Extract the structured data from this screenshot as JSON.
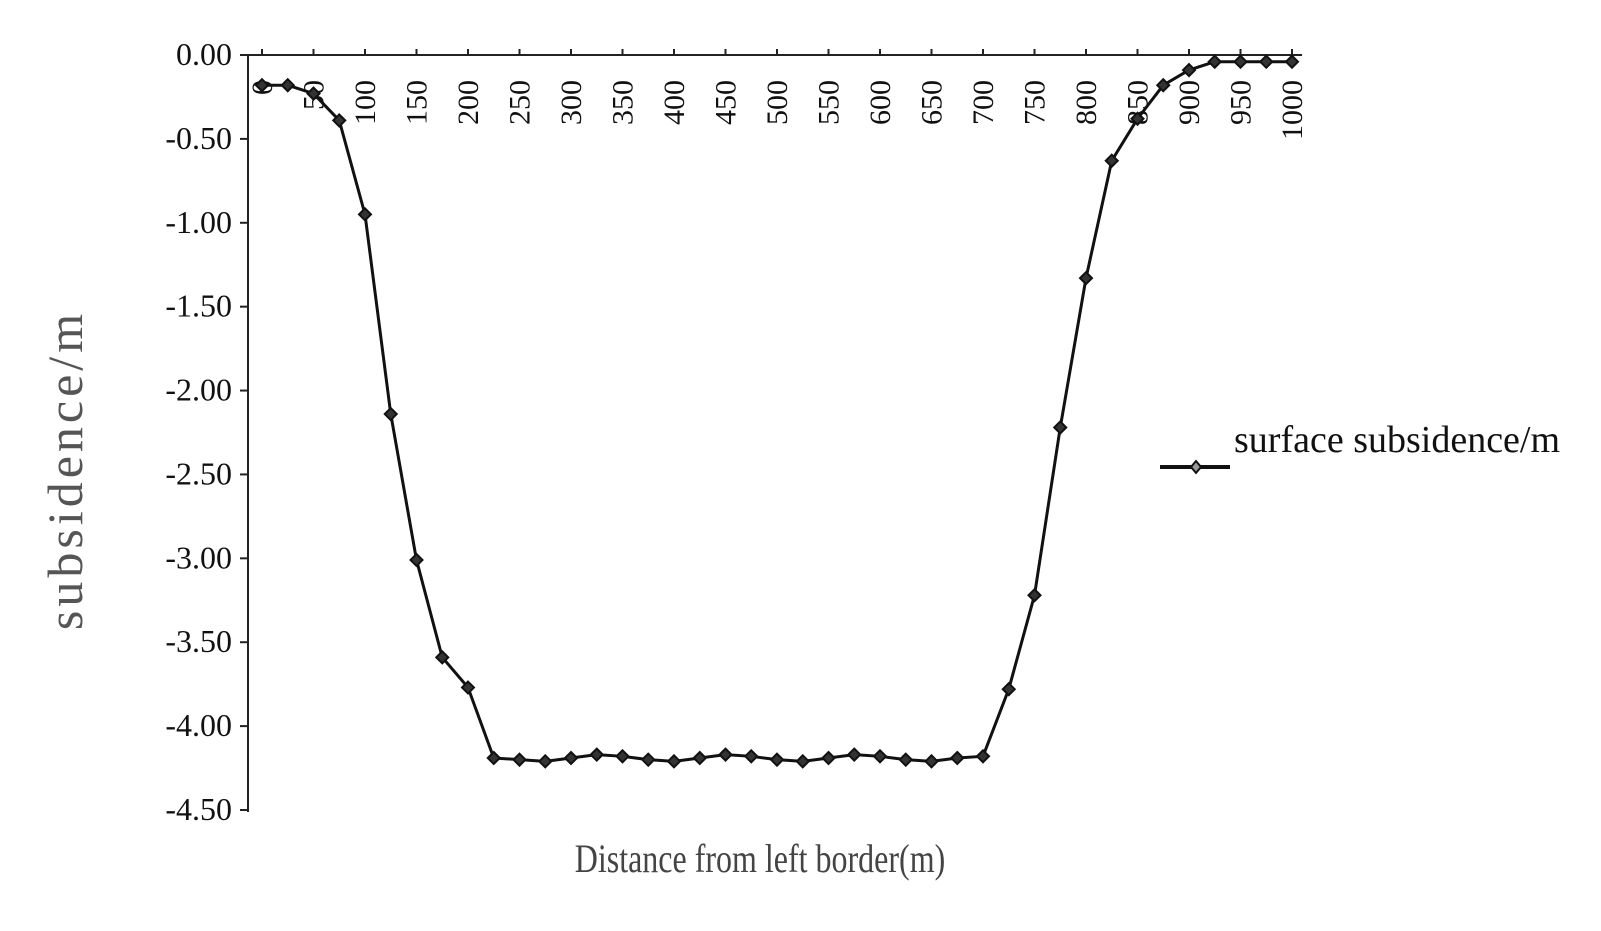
{
  "chart_data": {
    "type": "line",
    "x_label": "Distance from left border(m)",
    "y_label": "subsidence/m",
    "x": [
      0,
      25,
      50,
      75,
      100,
      125,
      150,
      175,
      200,
      225,
      250,
      275,
      300,
      325,
      350,
      375,
      400,
      425,
      450,
      475,
      500,
      525,
      550,
      575,
      600,
      625,
      650,
      675,
      700,
      725,
      750,
      775,
      800,
      825,
      850,
      875,
      900,
      925,
      950,
      975,
      1000
    ],
    "series": [
      {
        "name": "surface subsidence/m",
        "color": "#111111",
        "values": [
          -0.18,
          -0.18,
          -0.23,
          -0.39,
          -0.95,
          -2.14,
          -3.01,
          -3.59,
          -3.77,
          -4.19,
          -4.2,
          -4.21,
          -4.19,
          -4.17,
          -4.18,
          -4.2,
          -4.21,
          -4.19,
          -4.17,
          -4.18,
          -4.2,
          -4.21,
          -4.19,
          -4.17,
          -4.18,
          -4.2,
          -4.21,
          -4.19,
          -4.18,
          -3.78,
          -3.22,
          -2.22,
          -1.33,
          -0.63,
          -0.38,
          -0.18,
          -0.09,
          -0.04,
          -0.04,
          -0.04,
          -0.04
        ]
      }
    ],
    "xlim": [
      0,
      1000
    ],
    "xticks": [
      0,
      50,
      100,
      150,
      200,
      250,
      300,
      350,
      400,
      450,
      500,
      550,
      600,
      650,
      700,
      750,
      800,
      850,
      900,
      950,
      1000
    ],
    "ylim": [
      -4.5,
      0
    ],
    "yticks": [
      {
        "value": 0,
        "label": "0.00"
      },
      {
        "value": -0.5,
        "label": "-0.50"
      },
      {
        "value": -1,
        "label": "-1.00"
      },
      {
        "value": -1.5,
        "label": "-1.50"
      },
      {
        "value": -2,
        "label": "-2.00"
      },
      {
        "value": -2.5,
        "label": "-2.50"
      },
      {
        "value": -3,
        "label": "-3.00"
      },
      {
        "value": -3.5,
        "label": "-3.50"
      },
      {
        "value": -4,
        "label": "-4.00"
      },
      {
        "value": -4.5,
        "label": "-4.50"
      }
    ],
    "legend": "right",
    "grid": false
  }
}
